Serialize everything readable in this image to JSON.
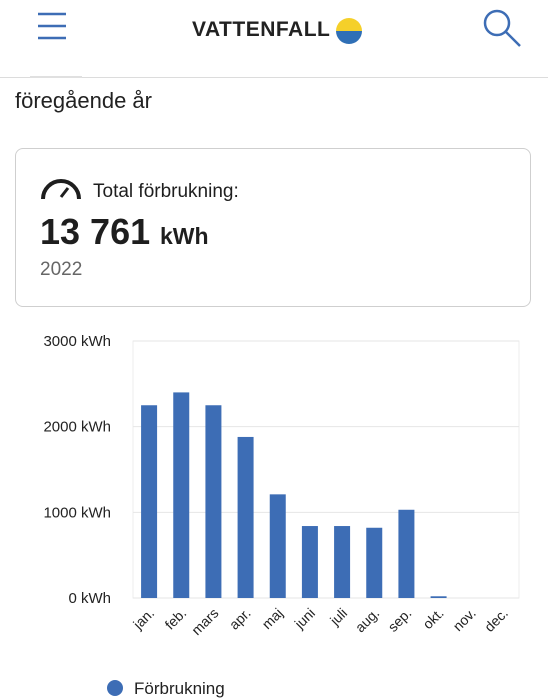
{
  "header": {
    "logo": "VATTENFALL"
  },
  "subtitle": "föregående år",
  "summary": {
    "label": "Total förbrukning:",
    "total": "13 761",
    "unit": "kWh",
    "year": "2022"
  },
  "chart_data": {
    "type": "bar",
    "categories": [
      "jan.",
      "feb.",
      "mars",
      "apr.",
      "maj",
      "juni",
      "juli",
      "aug.",
      "sep.",
      "okt.",
      "nov.",
      "dec."
    ],
    "series": [
      {
        "name": "Förbrukning",
        "color": "#3d6db5",
        "values": [
          2250,
          2400,
          2250,
          1880,
          1210,
          840,
          840,
          820,
          1030,
          20,
          null,
          null
        ]
      }
    ],
    "ylim": [
      0,
      3000
    ],
    "yticks": [
      {
        "value": 0,
        "label": "0 kWh"
      },
      {
        "value": 1000,
        "label": "1000 kWh"
      },
      {
        "value": 2000,
        "label": "2000 kWh"
      },
      {
        "value": 3000,
        "label": "3000 kWh"
      }
    ],
    "grid": true
  }
}
